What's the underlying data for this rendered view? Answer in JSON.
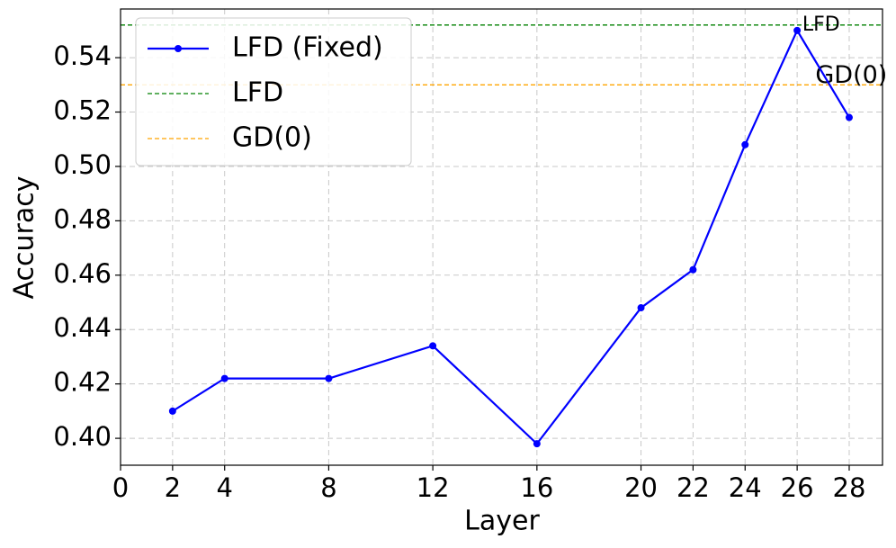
{
  "chart_data": {
    "type": "line",
    "x_label": "Layer",
    "y_label": "Accuracy",
    "x": [
      2,
      4,
      8,
      12,
      16,
      20,
      22,
      24,
      26,
      28
    ],
    "series": [
      {
        "name": "LFD (Fixed)",
        "color": "#0000ff",
        "values": [
          0.41,
          0.422,
          0.422,
          0.434,
          0.398,
          0.448,
          0.462,
          0.508,
          0.55,
          0.518
        ]
      }
    ],
    "reference_lines": [
      {
        "name": "LFD",
        "value": 0.552,
        "color": "#008000"
      },
      {
        "name": "GD(0)",
        "value": 0.53,
        "color": "#ffa500"
      }
    ],
    "xlim": [
      0,
      29.28
    ],
    "ylim": [
      0.3901,
      0.5579
    ],
    "xticks": [
      0,
      2,
      4,
      8,
      12,
      16,
      20,
      22,
      24,
      26,
      28
    ],
    "yticks": [
      {
        "value": 0.4,
        "label": "0.40"
      },
      0.42,
      0.44,
      0.46,
      0.48,
      {
        "value": 0.5,
        "label": "0.50"
      },
      0.52,
      0.54
    ],
    "grid": true
  }
}
